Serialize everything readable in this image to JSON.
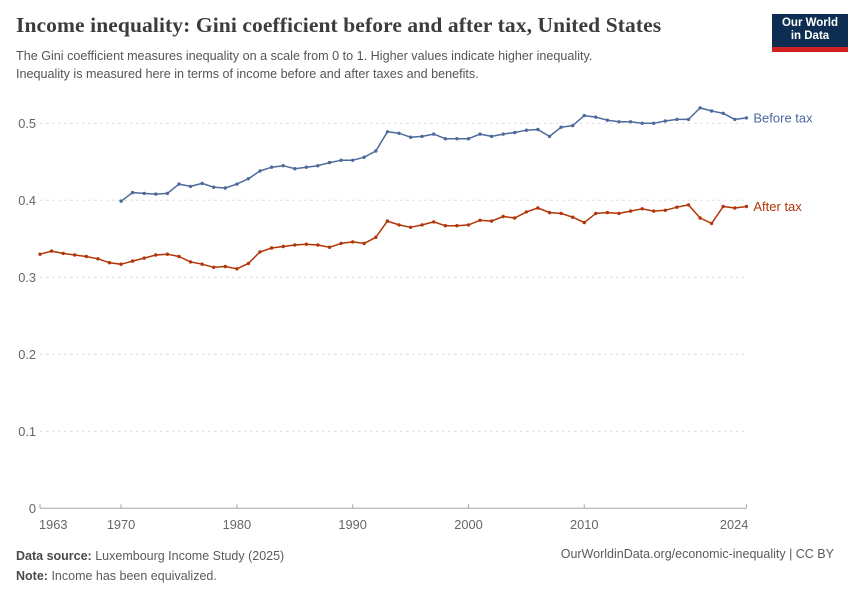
{
  "header": {
    "title": "Income inequality: Gini coefficient before and after tax, United States",
    "subtitle_line1": "The Gini coefficient measures inequality on a scale from 0 to 1. Higher values indicate higher inequality.",
    "subtitle_line2": "Inequality is measured here in terms of income before and after taxes and benefits."
  },
  "logo": {
    "line1": "Our World",
    "line2": "in Data",
    "bg_color": "#0d2e52",
    "bar_color": "#cf2220"
  },
  "chart_data": {
    "type": "line",
    "title": "Income inequality: Gini coefficient before and after tax, United States",
    "xlabel": "",
    "ylabel": "",
    "xlim": [
      1963,
      2024
    ],
    "ylim": [
      0,
      0.53
    ],
    "x_ticks": [
      1963,
      1970,
      1980,
      1990,
      2000,
      2010,
      2024
    ],
    "y_ticks": [
      0,
      0.1,
      0.2,
      0.3,
      0.4,
      0.5
    ],
    "grid": "horizontal dashed gridlines",
    "legend_position": "labels at right end of each line",
    "series": [
      {
        "name": "Before tax",
        "color": "#4C6A9C",
        "years": [
          1970,
          1971,
          1972,
          1973,
          1974,
          1975,
          1976,
          1977,
          1978,
          1979,
          1980,
          1981,
          1982,
          1983,
          1984,
          1985,
          1986,
          1987,
          1988,
          1989,
          1990,
          1991,
          1992,
          1993,
          1994,
          1995,
          1996,
          1997,
          1998,
          1999,
          2000,
          2001,
          2002,
          2003,
          2004,
          2005,
          2006,
          2007,
          2008,
          2009,
          2010,
          2011,
          2012,
          2013,
          2014,
          2015,
          2016,
          2017,
          2018,
          2019,
          2020,
          2021,
          2022,
          2023,
          2024
        ],
        "values": [
          0.399,
          0.41,
          0.409,
          0.408,
          0.409,
          0.421,
          0.418,
          0.422,
          0.417,
          0.416,
          0.421,
          0.428,
          0.438,
          0.443,
          0.445,
          0.441,
          0.443,
          0.445,
          0.449,
          0.452,
          0.452,
          0.456,
          0.464,
          0.489,
          0.487,
          0.482,
          0.483,
          0.486,
          0.48,
          0.48,
          0.48,
          0.486,
          0.483,
          0.486,
          0.488,
          0.491,
          0.492,
          0.483,
          0.495,
          0.497,
          0.51,
          0.508,
          0.504,
          0.502,
          0.502,
          0.5,
          0.5,
          0.503,
          0.505,
          0.505,
          0.52,
          0.516,
          0.513,
          0.505,
          0.507
        ]
      },
      {
        "name": "After tax",
        "color": "#B13507",
        "years": [
          1963,
          1964,
          1965,
          1966,
          1967,
          1968,
          1969,
          1970,
          1971,
          1972,
          1973,
          1974,
          1975,
          1976,
          1977,
          1978,
          1979,
          1980,
          1981,
          1982,
          1983,
          1984,
          1985,
          1986,
          1987,
          1988,
          1989,
          1990,
          1991,
          1992,
          1993,
          1994,
          1995,
          1996,
          1997,
          1998,
          1999,
          2000,
          2001,
          2002,
          2003,
          2004,
          2005,
          2006,
          2007,
          2008,
          2009,
          2010,
          2011,
          2012,
          2013,
          2014,
          2015,
          2016,
          2017,
          2018,
          2019,
          2020,
          2021,
          2022,
          2023,
          2024
        ],
        "values": [
          0.33,
          0.334,
          0.331,
          0.329,
          0.327,
          0.324,
          0.319,
          0.317,
          0.321,
          0.325,
          0.329,
          0.33,
          0.327,
          0.32,
          0.317,
          0.313,
          0.314,
          0.311,
          0.318,
          0.333,
          0.338,
          0.34,
          0.342,
          0.343,
          0.342,
          0.339,
          0.344,
          0.346,
          0.344,
          0.352,
          0.373,
          0.368,
          0.365,
          0.368,
          0.372,
          0.367,
          0.367,
          0.368,
          0.374,
          0.373,
          0.379,
          0.377,
          0.385,
          0.39,
          0.384,
          0.383,
          0.378,
          0.371,
          0.383,
          0.384,
          0.383,
          0.386,
          0.389,
          0.386,
          0.387,
          0.391,
          0.394,
          0.377,
          0.37,
          0.392,
          0.39,
          0.392
        ]
      }
    ],
    "style": {
      "gridline_color": "#dcdcdc",
      "axis_color": "#a5a5a5",
      "tick_label_color": "#666666"
    }
  },
  "footer": {
    "datasource_label": "Data source:",
    "datasource_value": "Luxembourg Income Study (2025)",
    "note_label": "Note:",
    "note_value": "Income has been equivalized.",
    "url_text": "OurWorldinData.org/economic-inequality | CC BY"
  }
}
